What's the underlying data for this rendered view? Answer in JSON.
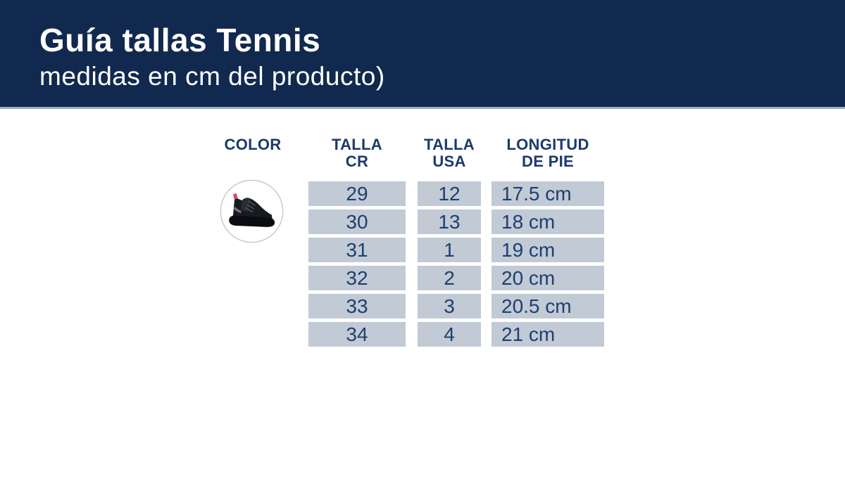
{
  "banner": {
    "title": "Guía tallas Tennis",
    "subtitle": "medidas en cm del producto)"
  },
  "table": {
    "headers": {
      "color": "COLOR",
      "talla_cr": {
        "line1": "TALLA",
        "line2": "CR"
      },
      "talla_usa": {
        "line1": "TALLA",
        "line2": "USA"
      },
      "longitud": {
        "line1": "LONGITUD",
        "line2": "DE PIE"
      }
    },
    "rows": [
      {
        "talla_cr": "29",
        "talla_usa": "12",
        "longitud_de_pie": "17.5 cm"
      },
      {
        "talla_cr": "30",
        "talla_usa": "13",
        "longitud_de_pie": "18 cm"
      },
      {
        "talla_cr": "31",
        "talla_usa": "1",
        "longitud_de_pie": "19 cm"
      },
      {
        "talla_cr": "32",
        "talla_usa": "2",
        "longitud_de_pie": "20 cm"
      },
      {
        "talla_cr": "33",
        "talla_usa": "3",
        "longitud_de_pie": "20.5 cm"
      },
      {
        "talla_cr": "34",
        "talla_usa": "4",
        "longitud_de_pie": "21 cm"
      }
    ]
  },
  "product": {
    "icon": "black-tennis-shoe-icon",
    "shoe_color": "#191a1f",
    "heel_tab_color": "#e0476a"
  },
  "chart_data": {
    "type": "table",
    "title": "Guía tallas Tennis (medidas en cm del producto)",
    "columns": [
      "TALLA CR",
      "TALLA USA",
      "LONGITUD DE PIE"
    ],
    "rows": [
      [
        "29",
        "12",
        "17.5 cm"
      ],
      [
        "30",
        "13",
        "18 cm"
      ],
      [
        "31",
        "1",
        "19 cm"
      ],
      [
        "32",
        "2",
        "20 cm"
      ],
      [
        "33",
        "3",
        "20.5 cm"
      ],
      [
        "34",
        "4",
        "21 cm"
      ]
    ]
  },
  "colors": {
    "banner_bg": "#12294f",
    "banner_edge": "#9fb0c4",
    "banner_text": "#ffffff",
    "header_text": "#1b3a6b",
    "cell_bg": "#c1cad5",
    "cell_text": "#1e3f6f"
  }
}
